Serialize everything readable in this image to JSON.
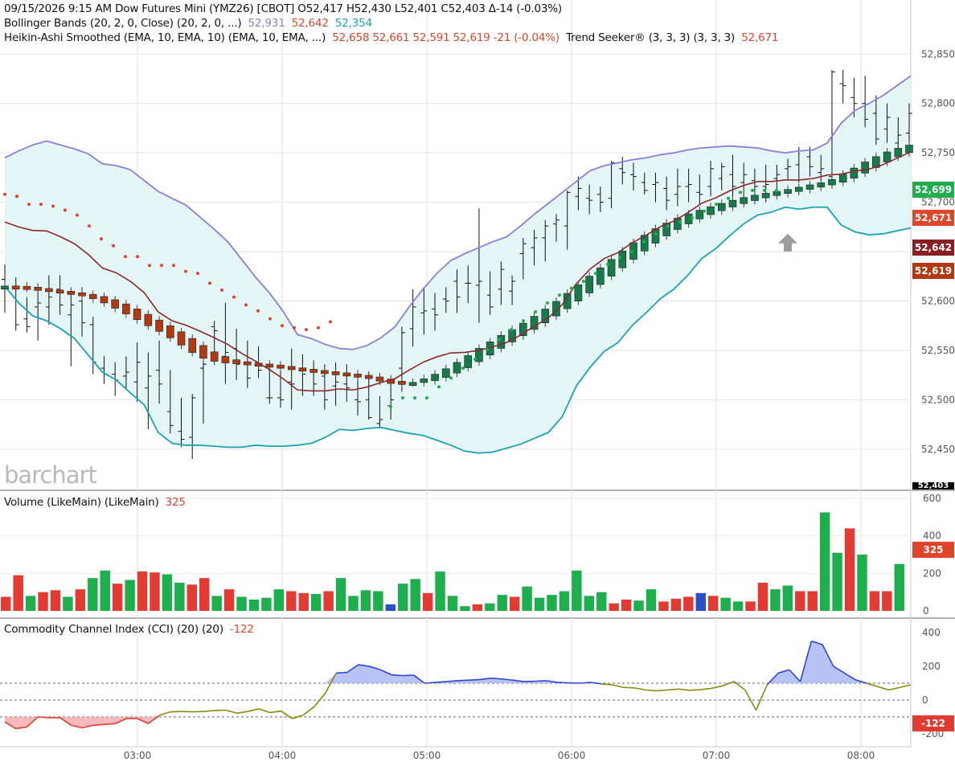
{
  "header": {
    "line1": "09/15/2026  9:15 AM Dow Futures Mini (YMZ26) [CBOT] O52,417 H52,430 L52,401 C52,403 Δ-14 (-0.03%)",
    "boll_label": "Bollinger Bands (20, 2, 0, Close)  (20, 2, 0, ...)",
    "boll_upper": "52,931",
    "boll_mid": "52,642",
    "boll_lower": "52,354",
    "ha_label": "Heikin-Ashi Smoothed (EMA, 10, EMA, 10)  (EMA, 10, EMA, ...)",
    "ha_values": "52,658  52,661  52,591  52,619  -21 (-0.04%)",
    "ts_label": "Trend Seeker® (3, 3, 3)  (3, 3, 3)",
    "ts_value": "52,671"
  },
  "logo": "barchart",
  "volume_title": "Volume (LikeMain)  (LikeMain)",
  "volume_value": "325",
  "cci_title": "Commodity Channel Index (CCI) (20)  (20)",
  "cci_value": "-122",
  "price_labels": {
    "p1": "52,699",
    "p2": "52,671",
    "p3": "52,642",
    "p4": "52,619",
    "p_last": "52,403"
  },
  "volume_label": "325",
  "cci_label": "-122",
  "colors": {
    "up": "#1fae4d",
    "down": "#e23b33",
    "neutral_vol": "#2b4fc4",
    "ha_up": "#177a48",
    "ha_down": "#b23a12",
    "band_line": "#8b7fd6",
    "lower_band": "#1aa3b4",
    "band_fill": "#e4f5f5",
    "cci_line": "#8a8a12",
    "cci_high": "#2f45d8",
    "cci_low": "#e23b33",
    "ts_up": "#1fae4d",
    "ts_down": "#e0452b",
    "label_green": "#1fae4d",
    "label_red": "#e0452b",
    "label_dark": "#8b1e22",
    "label_brown": "#b33a10"
  },
  "chart_data": [
    {
      "type": "ohlc",
      "title": "Dow Futures Mini (YMZ26) [CBOT]",
      "time_labels": [
        "03:00",
        "04:00",
        "05:00",
        "06:00",
        "07:00",
        "08:00"
      ],
      "y_ticks": [
        "52,850",
        "52,800",
        "52,750",
        "52,700",
        "52,650",
        "52,600",
        "52,550",
        "52,500",
        "52,450"
      ],
      "y_tick_values": [
        52850,
        52800,
        52750,
        52700,
        52650,
        52600,
        52550,
        52500,
        52450
      ],
      "ylim": [
        52410,
        52895
      ],
      "interval_minutes": 5,
      "bars": [
        [
          52622,
          52637,
          52588,
          52614
        ],
        [
          52614,
          52624,
          52570,
          52576
        ],
        [
          52582,
          52604,
          52568,
          52574
        ],
        [
          52594,
          52608,
          52560,
          52598
        ],
        [
          52594,
          52626,
          52576,
          52604
        ],
        [
          52612,
          52626,
          52586,
          52596
        ],
        [
          52586,
          52610,
          52534,
          52596
        ],
        [
          52600,
          52614,
          52564,
          52578
        ],
        [
          52576,
          52584,
          52526,
          52538
        ],
        [
          52532,
          52544,
          52516,
          52526
        ],
        [
          52526,
          52538,
          52504,
          52520
        ],
        [
          52524,
          52544,
          52510,
          52528
        ],
        [
          52518,
          52558,
          52498,
          52538
        ],
        [
          52512,
          52548,
          52470,
          52524
        ],
        [
          52530,
          52560,
          52496,
          52516
        ],
        [
          52488,
          52530,
          52466,
          52474
        ],
        [
          52468,
          52502,
          52452,
          52460
        ],
        [
          52462,
          52506,
          52440,
          52502
        ],
        [
          52532,
          52558,
          52476,
          52536
        ],
        [
          52574,
          52580,
          52538,
          52570
        ],
        [
          52544,
          52598,
          52516,
          52548
        ],
        [
          52552,
          52572,
          52520,
          52536
        ],
        [
          52536,
          52560,
          52512,
          52522
        ],
        [
          52538,
          52554,
          52522,
          52530
        ],
        [
          52502,
          52532,
          52496,
          52502
        ],
        [
          52502,
          52532,
          52492,
          52500
        ],
        [
          52518,
          52552,
          52490,
          52516
        ],
        [
          52530,
          52546,
          52504,
          52526
        ],
        [
          52528,
          52540,
          52504,
          52516
        ],
        [
          52524,
          52536,
          52490,
          52500
        ],
        [
          52514,
          52538,
          52494,
          52518
        ],
        [
          52516,
          52536,
          52498,
          52512
        ],
        [
          52500,
          52522,
          52484,
          52498
        ],
        [
          52500,
          52528,
          52480,
          52482
        ],
        [
          52476,
          52504,
          52472,
          52480
        ],
        [
          52494,
          52520,
          52480,
          52500
        ],
        [
          52532,
          52574,
          52508,
          52568
        ],
        [
          52572,
          52612,
          52554,
          52594
        ],
        [
          52588,
          52614,
          52566,
          52590
        ],
        [
          52592,
          52608,
          52570,
          52586
        ],
        [
          52602,
          52614,
          52588,
          52600
        ],
        [
          52620,
          52632,
          52588,
          52604
        ],
        [
          52618,
          52636,
          52598,
          52618
        ],
        [
          52616,
          52694,
          52578,
          52620
        ],
        [
          52606,
          52630,
          52586,
          52594
        ],
        [
          52612,
          52640,
          52596,
          52632
        ],
        [
          52610,
          52626,
          52596,
          52620
        ],
        [
          52648,
          52664,
          52622,
          52658
        ],
        [
          52654,
          52672,
          52636,
          52664
        ],
        [
          52664,
          52682,
          52640,
          52676
        ],
        [
          52678,
          52688,
          52660,
          52682
        ],
        [
          52676,
          52712,
          52652,
          52710
        ],
        [
          52706,
          52726,
          52692,
          52714
        ],
        [
          52704,
          52718,
          52688,
          52702
        ],
        [
          52708,
          52716,
          52690,
          52700
        ],
        [
          52704,
          52742,
          52694,
          52740
        ],
        [
          52734,
          52746,
          52718,
          52730
        ],
        [
          52728,
          52740,
          52712,
          52726
        ],
        [
          52720,
          52730,
          52708,
          52712
        ],
        [
          52718,
          52730,
          52700,
          52720
        ],
        [
          52714,
          52726,
          52692,
          52702
        ],
        [
          52708,
          52734,
          52696,
          52716
        ],
        [
          52716,
          52734,
          52700,
          52718
        ],
        [
          52710,
          52728,
          52698,
          52708
        ],
        [
          52716,
          52742,
          52706,
          52734
        ],
        [
          52724,
          52740,
          52712,
          52736
        ],
        [
          52728,
          52748,
          52702,
          52716
        ],
        [
          52720,
          52740,
          52706,
          52728
        ],
        [
          52722,
          52734,
          52708,
          52716
        ],
        [
          52716,
          52738,
          52700,
          52718
        ],
        [
          52724,
          52738,
          52710,
          52728
        ],
        [
          52734,
          52744,
          52722,
          52736
        ],
        [
          52738,
          52756,
          52720,
          52752
        ],
        [
          52746,
          52756,
          52726,
          52736
        ],
        [
          52730,
          52748,
          52722,
          52734
        ],
        [
          52726,
          52834,
          52724,
          52832
        ],
        [
          52820,
          52834,
          52800,
          52818
        ],
        [
          52806,
          52826,
          52786,
          52800
        ],
        [
          52800,
          52828,
          52776,
          52784
        ],
        [
          52790,
          52808,
          52758,
          52764
        ],
        [
          52774,
          52800,
          52760,
          52786
        ],
        [
          52760,
          52786,
          52752,
          52768
        ],
        [
          52770,
          52800,
          52746,
          52790
        ]
      ]
    },
    {
      "type": "line",
      "name": "Bollinger Bands",
      "upper": [
        52745,
        52752,
        52758,
        52762,
        52758,
        52754,
        52749,
        52739,
        52737,
        52733,
        52722,
        52711,
        52704,
        52697,
        52685,
        52673,
        52660,
        52642,
        52624,
        52608,
        52589,
        52566,
        52562,
        52556,
        52552,
        52551,
        52555,
        52563,
        52574,
        52594,
        52612,
        52628,
        52641,
        52648,
        52654,
        52660,
        52665,
        52676,
        52688,
        52699,
        52710,
        52721,
        52732,
        52737,
        52740,
        52743,
        52745,
        52748,
        52750,
        52753,
        52755,
        52756,
        52757,
        52756,
        52755,
        52752,
        52750,
        52752,
        52753,
        52760,
        52780,
        52793,
        52800,
        52808,
        52818,
        52828
      ],
      "lower": [
        52615,
        52598,
        52585,
        52580,
        52572,
        52562,
        52545,
        52528,
        52520,
        52507,
        52495,
        52467,
        52456,
        52454,
        52454,
        52453,
        52452,
        52452,
        52454,
        52453,
        52453,
        52454,
        52456,
        52462,
        52470,
        52469,
        52471,
        52472,
        52469,
        52466,
        52464,
        52459,
        52454,
        52448,
        52446,
        52447,
        52451,
        52455,
        52461,
        52467,
        52483,
        52514,
        52533,
        52549,
        52558,
        52575,
        52588,
        52602,
        52612,
        52626,
        52643,
        52653,
        52666,
        52678,
        52687,
        52690,
        52695,
        52693,
        52695,
        52695,
        52677,
        52670,
        52667,
        52668,
        52671,
        52674
      ],
      "ts_up_levels": [
        52493,
        52502,
        52502,
        52502,
        52513,
        52522,
        52532,
        52541,
        52551,
        52561,
        52571,
        52580,
        52589,
        52598,
        52606,
        52613,
        52620,
        52628,
        52637,
        52644,
        52650,
        52660,
        52668,
        52676,
        52680,
        52684,
        52691,
        52698,
        52704,
        52710,
        52712,
        52712,
        52712
      ],
      "ts_down_levels": [
        52708,
        52706,
        52698,
        52698,
        52696,
        52692,
        52687,
        52676,
        52663,
        52656,
        52645,
        52645,
        52636,
        52636,
        52636,
        52630,
        52628,
        52618,
        52611,
        52604,
        52596,
        52590,
        52582,
        52575,
        52573,
        52571,
        52573,
        52579
      ]
    },
    {
      "type": "bar",
      "name": "Volume",
      "ylim": [
        0,
        600
      ],
      "y_ticks": [
        "600",
        "400",
        "200",
        "0"
      ],
      "values": [
        75,
        190,
        80,
        100,
        110,
        75,
        115,
        175,
        215,
        145,
        165,
        210,
        205,
        195,
        150,
        140,
        175,
        80,
        115,
        75,
        60,
        70,
        115,
        105,
        95,
        90,
        105,
        175,
        80,
        110,
        105,
        35,
        145,
        170,
        95,
        210,
        80,
        25,
        35,
        40,
        85,
        75,
        130,
        70,
        85,
        105,
        215,
        80,
        100,
        40,
        60,
        55,
        115,
        50,
        65,
        75,
        95,
        80,
        70,
        50,
        50,
        150,
        115,
        135,
        105,
        105,
        525,
        310,
        440,
        300,
        105,
        105,
        250
      ],
      "colors": [
        "down",
        "down",
        "up",
        "down",
        "down",
        "up",
        "down",
        "up",
        "up",
        "down",
        "up",
        "down",
        "down",
        "up",
        "up",
        "down",
        "down",
        "up",
        "down",
        "up",
        "up",
        "up",
        "up",
        "down",
        "down",
        "up",
        "down",
        "up",
        "up",
        "up",
        "up",
        "neutral",
        "up",
        "up",
        "down",
        "up",
        "up",
        "up",
        "down",
        "up",
        "up",
        "down",
        "up",
        "up",
        "up",
        "up",
        "up",
        "up",
        "up",
        "down",
        "down",
        "up",
        "up",
        "down",
        "down",
        "down",
        "neutral",
        "down",
        "up",
        "up",
        "down",
        "down",
        "up",
        "up",
        "down",
        "down",
        "up",
        "up",
        "down",
        "up",
        "down",
        "down",
        "up"
      ]
    },
    {
      "type": "area",
      "name": "Commodity Channel Index (CCI) (20)",
      "ylim": [
        -220,
        420
      ],
      "y_ticks": [
        "400",
        "200",
        "0",
        "-200"
      ],
      "levels": [
        100,
        0,
        -100
      ],
      "values": [
        -130,
        -170,
        -160,
        -100,
        -105,
        -105,
        -150,
        -165,
        -150,
        -145,
        -140,
        -110,
        -110,
        -140,
        -90,
        -70,
        -68,
        -70,
        -68,
        -62,
        -60,
        -78,
        -68,
        -52,
        -75,
        -65,
        -110,
        -90,
        -40,
        40,
        160,
        165,
        210,
        200,
        180,
        150,
        145,
        148,
        100,
        105,
        110,
        115,
        118,
        122,
        130,
        125,
        118,
        110,
        112,
        115,
        105,
        102,
        100,
        105,
        96,
        90,
        75,
        72,
        60,
        55,
        60,
        65,
        58,
        62,
        70,
        85,
        110,
        60,
        -60,
        90,
        160,
        180,
        110,
        350,
        330,
        200,
        160,
        120,
        100,
        80,
        60,
        75,
        90
      ]
    }
  ]
}
